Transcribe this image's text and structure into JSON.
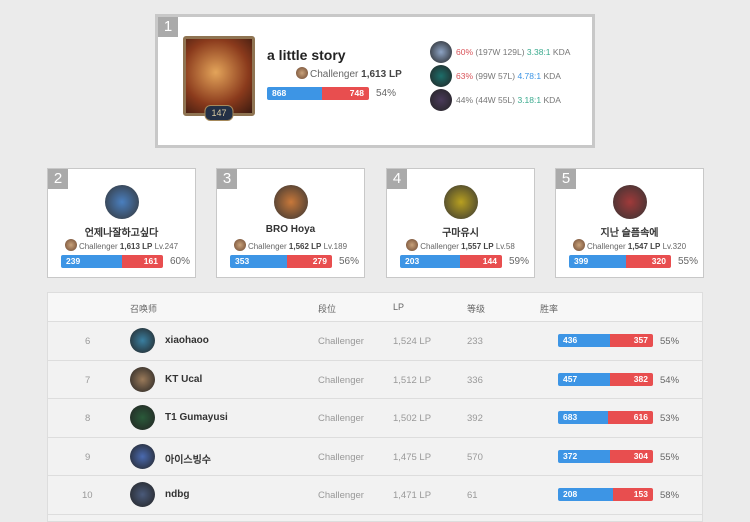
{
  "top": {
    "rank": "1",
    "name": "a little story",
    "level": "147",
    "tier": "Challenger",
    "lp": "1,613 LP",
    "wins": 868,
    "losses": 748,
    "win_label": "868",
    "loss_label": "748",
    "winrate": "54%",
    "champions": [
      {
        "winrate": "60%",
        "record": "(197W 129L)",
        "kda": "3.38:1",
        "kda_suffix": "KDA",
        "color": "#8da3c4",
        "kda_color": "#3aaa8e",
        "wr_color": "#d9545a"
      },
      {
        "winrate": "63%",
        "record": "(99W 57L)",
        "kda": "4.78:1",
        "kda_suffix": "KDA",
        "color": "#1d6e6a",
        "kda_color": "#3d95e5",
        "wr_color": "#d9545a"
      },
      {
        "winrate": "44%",
        "record": "(44W 55L)",
        "kda": "3.18:1",
        "kda_suffix": "KDA",
        "color": "#4a3a5a",
        "kda_color": "#3aaa8e",
        "wr_color": "#777"
      }
    ]
  },
  "cards": [
    {
      "rank": "2",
      "name": "언제나잘하고싶다",
      "tier": "Challenger",
      "lp": "1,613 LP",
      "level": "Lv.247",
      "wins": 239,
      "losses": 161,
      "win_label": "239",
      "loss_label": "161",
      "winrate": "60%",
      "color": "#4a7fbf"
    },
    {
      "rank": "3",
      "name": "BRO Hoya",
      "tier": "Challenger",
      "lp": "1,562 LP",
      "level": "Lv.189",
      "wins": 353,
      "losses": 279,
      "win_label": "353",
      "loss_label": "279",
      "winrate": "56%",
      "color": "#c8783a"
    },
    {
      "rank": "4",
      "name": "구마유시",
      "tier": "Challenger",
      "lp": "1,557 LP",
      "level": "Lv.58",
      "wins": 203,
      "losses": 144,
      "win_label": "203",
      "loss_label": "144",
      "winrate": "59%",
      "color": "#b8a020"
    },
    {
      "rank": "5",
      "name": "지난 슬픔속에",
      "tier": "Challenger",
      "lp": "1,547 LP",
      "level": "Lv.320",
      "wins": 399,
      "losses": 320,
      "win_label": "399",
      "loss_label": "320",
      "winrate": "55%",
      "color": "#a03a3a"
    }
  ],
  "table": {
    "headers": {
      "summoner": "召唤师",
      "tier": "段位",
      "lp": "LP",
      "level": "等级",
      "winrate": "胜率"
    },
    "rows": [
      {
        "rank": "6",
        "name": "xiaohaoo",
        "tier": "Challenger",
        "lp": "1,524 LP",
        "level": "233",
        "wins": 436,
        "losses": 357,
        "win_label": "436",
        "loss_label": "357",
        "winrate": "55%",
        "color": "#3a7fa0"
      },
      {
        "rank": "7",
        "name": "KT Ucal",
        "tier": "Challenger",
        "lp": "1,512 LP",
        "level": "336",
        "wins": 457,
        "losses": 382,
        "win_label": "457",
        "loss_label": "382",
        "winrate": "54%",
        "color": "#9a7a5a"
      },
      {
        "rank": "8",
        "name": "T1 Gumayusi",
        "tier": "Challenger",
        "lp": "1,502 LP",
        "level": "392",
        "wins": 683,
        "losses": 616,
        "win_label": "683",
        "loss_label": "616",
        "winrate": "53%",
        "color": "#2a5a3a"
      },
      {
        "rank": "9",
        "name": "아이스빙수",
        "tier": "Challenger",
        "lp": "1,475 LP",
        "level": "570",
        "wins": 372,
        "losses": 304,
        "win_label": "372",
        "loss_label": "304",
        "winrate": "55%",
        "color": "#4a6ab0"
      },
      {
        "rank": "10",
        "name": "ndbg",
        "tier": "Challenger",
        "lp": "1,471 LP",
        "level": "61",
        "wins": 208,
        "losses": 153,
        "win_label": "208",
        "loss_label": "153",
        "winrate": "58%",
        "color": "#4a5a7a"
      }
    ]
  }
}
